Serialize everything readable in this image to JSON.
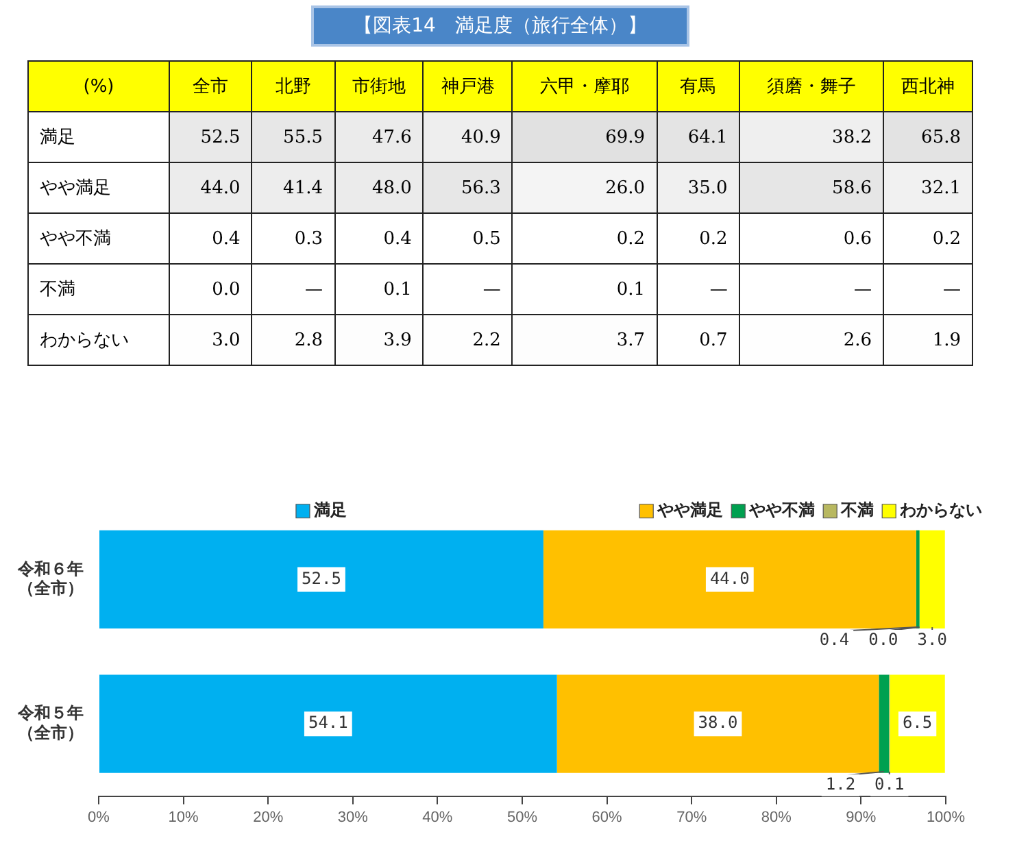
{
  "chart_data": [
    {
      "type": "heatmap",
      "title": "【図表14　満足度（旅行全体）】",
      "ylabel": "(%)",
      "categories": [
        "全市",
        "北野",
        "市街地",
        "神戸港",
        "六甲・摩耶",
        "有馬",
        "須磨・舞子",
        "西北神"
      ],
      "y_categories": [
        "満足",
        "やや満足",
        "やや不満",
        "不満",
        "わからない"
      ],
      "cells": [
        [
          52.5,
          55.5,
          47.6,
          40.9,
          69.9,
          64.1,
          38.2,
          65.8
        ],
        [
          44.0,
          41.4,
          48.0,
          56.3,
          26.0,
          35.0,
          58.6,
          32.1
        ],
        [
          0.4,
          0.3,
          0.4,
          0.5,
          0.2,
          0.2,
          0.6,
          0.2
        ],
        [
          0.0,
          null,
          0.1,
          null,
          0.1,
          null,
          null,
          null
        ],
        [
          3.0,
          2.8,
          3.9,
          2.2,
          3.7,
          0.7,
          2.6,
          1.9
        ]
      ],
      "cell_labels": [
        [
          "52.5",
          "55.5",
          "47.6",
          "40.9",
          "69.9",
          "64.1",
          "38.2",
          "65.8"
        ],
        [
          "44.0",
          "41.4",
          "48.0",
          "56.3",
          "26.0",
          "35.0",
          "58.6",
          "32.1"
        ],
        [
          "0.4",
          "0.3",
          "0.4",
          "0.5",
          "0.2",
          "0.2",
          "0.6",
          "0.2"
        ],
        [
          "0.0",
          "—",
          "0.1",
          "—",
          "0.1",
          "—",
          "—",
          "—"
        ],
        [
          "3.0",
          "2.8",
          "3.9",
          "2.2",
          "3.7",
          "0.7",
          "2.6",
          "1.9"
        ]
      ]
    },
    {
      "type": "bar",
      "orientation": "horizontal",
      "stacked": true,
      "categories": [
        "令和６年（全市）",
        "令和５年（全市）"
      ],
      "series": [
        {
          "name": "満足",
          "color": "#00b0f0",
          "values": [
            52.5,
            54.1
          ],
          "value_labels": [
            "52.5",
            "54.1"
          ]
        },
        {
          "name": "やや満足",
          "color": "#ffc000",
          "values": [
            44.0,
            38.0
          ],
          "value_labels": [
            "44.0",
            "38.0"
          ]
        },
        {
          "name": "やや不満",
          "color": "#00a050",
          "values": [
            0.4,
            1.2
          ],
          "value_labels": [
            "0.4",
            "1.2"
          ]
        },
        {
          "name": "不満",
          "color": "#b8b860",
          "values": [
            0.0,
            0.1
          ],
          "value_labels": [
            "0.0",
            "0.1"
          ]
        },
        {
          "name": "わからない",
          "color": "#ffff00",
          "values": [
            3.0,
            6.5
          ],
          "value_labels": [
            "3.0",
            "6.5"
          ]
        }
      ],
      "xlim": [
        0,
        100
      ],
      "xticks": [
        {
          "value": 0,
          "label": "0%"
        },
        {
          "value": 10,
          "label": "10%"
        },
        {
          "value": 20,
          "label": "20%"
        },
        {
          "value": 30,
          "label": "30%"
        },
        {
          "value": 40,
          "label": "40%"
        },
        {
          "value": 50,
          "label": "50%"
        },
        {
          "value": 60,
          "label": "60%"
        },
        {
          "value": 70,
          "label": "70%"
        },
        {
          "value": 80,
          "label": "80%"
        },
        {
          "value": 90,
          "label": "90%"
        },
        {
          "value": 100,
          "label": "100%"
        }
      ],
      "grid": false,
      "legend": "top"
    }
  ]
}
